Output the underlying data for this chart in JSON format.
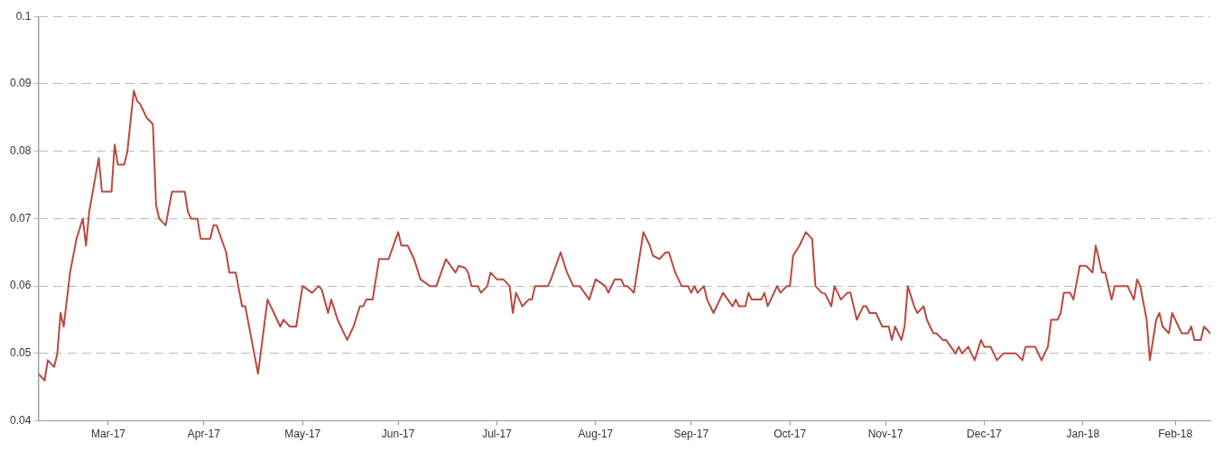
{
  "chart_data": {
    "type": "line",
    "x": [
      "2017-02-22",
      "2017-02-24",
      "2017-02-25",
      "2017-02-27",
      "2017-02-28",
      "2017-03-01",
      "2017-03-02",
      "2017-03-04",
      "2017-03-06",
      "2017-03-08",
      "2017-03-09",
      "2017-03-10",
      "2017-03-13",
      "2017-03-14",
      "2017-03-17",
      "2017-03-18",
      "2017-03-19",
      "2017-03-21",
      "2017-03-22",
      "2017-03-24",
      "2017-03-25",
      "2017-03-26",
      "2017-03-28",
      "2017-03-30",
      "2017-03-31",
      "2017-04-01",
      "2017-04-03",
      "2017-04-05",
      "2017-04-09",
      "2017-04-10",
      "2017-04-11",
      "2017-04-13",
      "2017-04-14",
      "2017-04-17",
      "2017-04-18",
      "2017-04-19",
      "2017-04-22",
      "2017-04-23",
      "2017-04-25",
      "2017-04-27",
      "2017-04-28",
      "2017-04-30",
      "2017-05-02",
      "2017-05-05",
      "2017-05-07",
      "2017-05-09",
      "2017-05-10",
      "2017-05-12",
      "2017-05-14",
      "2017-05-16",
      "2017-05-19",
      "2017-05-21",
      "2017-05-22",
      "2017-05-24",
      "2017-05-25",
      "2017-05-27",
      "2017-05-30",
      "2017-06-01",
      "2017-06-03",
      "2017-06-04",
      "2017-06-05",
      "2017-06-07",
      "2017-06-09",
      "2017-06-12",
      "2017-06-15",
      "2017-06-16",
      "2017-06-18",
      "2017-06-20",
      "2017-06-22",
      "2017-06-25",
      "2017-06-26",
      "2017-06-27",
      "2017-06-30",
      "2017-07-03",
      "2017-07-04",
      "2017-07-06",
      "2017-07-07",
      "2017-07-08",
      "2017-07-10",
      "2017-07-11",
      "2017-07-13",
      "2017-07-14",
      "2017-07-16",
      "2017-07-18",
      "2017-07-20",
      "2017-07-21",
      "2017-07-22",
      "2017-07-24",
      "2017-07-26",
      "2017-07-27",
      "2017-07-28",
      "2017-08-01",
      "2017-08-02",
      "2017-08-05",
      "2017-08-07",
      "2017-08-09",
      "2017-08-11",
      "2017-08-14",
      "2017-08-16",
      "2017-08-19",
      "2017-08-20",
      "2017-08-22",
      "2017-08-24",
      "2017-08-25",
      "2017-08-26",
      "2017-08-28",
      "2017-08-29",
      "2017-08-31",
      "2017-09-02",
      "2017-09-03",
      "2017-09-05",
      "2017-09-07",
      "2017-09-08",
      "2017-09-10",
      "2017-09-12",
      "2017-09-14",
      "2017-09-15",
      "2017-09-16",
      "2017-09-17",
      "2017-09-19",
      "2017-09-20",
      "2017-09-22",
      "2017-09-25",
      "2017-09-28",
      "2017-09-29",
      "2017-09-30",
      "2017-10-02",
      "2017-10-03",
      "2017-10-04",
      "2017-10-07",
      "2017-10-08",
      "2017-10-09",
      "2017-10-10",
      "2017-10-12",
      "2017-10-13",
      "2017-10-15",
      "2017-10-16",
      "2017-10-17",
      "2017-10-19",
      "2017-10-21",
      "2017-10-23",
      "2017-10-24",
      "2017-10-26",
      "2017-10-27",
      "2017-10-29",
      "2017-10-30",
      "2017-11-01",
      "2017-11-03",
      "2017-11-04",
      "2017-11-06",
      "2017-11-08",
      "2017-11-09",
      "2017-11-10",
      "2017-11-12",
      "2017-11-14",
      "2017-11-16",
      "2017-11-17",
      "2017-11-18",
      "2017-11-20",
      "2017-11-21",
      "2017-11-22",
      "2017-11-24",
      "2017-11-25",
      "2017-11-27",
      "2017-11-28",
      "2017-11-30",
      "2017-12-01",
      "2017-12-03",
      "2017-12-04",
      "2017-12-07",
      "2017-12-08",
      "2017-12-09",
      "2017-12-11",
      "2017-12-13",
      "2017-12-15",
      "2017-12-16",
      "2017-12-18",
      "2017-12-20",
      "2017-12-22",
      "2017-12-26",
      "2017-12-28",
      "2017-12-29",
      "2018-01-01",
      "2018-01-03",
      "2018-01-05",
      "2018-01-06",
      "2018-01-08",
      "2018-01-09",
      "2018-01-10",
      "2018-01-12",
      "2018-01-13",
      "2018-01-15",
      "2018-01-17",
      "2018-01-19",
      "2018-01-20",
      "2018-01-22",
      "2018-01-23",
      "2018-01-25",
      "2018-01-26",
      "2018-01-30",
      "2018-02-01",
      "2018-02-02",
      "2018-02-03",
      "2018-02-05",
      "2018-02-06",
      "2018-02-08",
      "2018-02-09",
      "2018-02-10",
      "2018-02-12",
      "2018-02-13",
      "2018-02-15",
      "2018-02-16",
      "2018-02-18",
      "2018-02-19",
      "2018-02-20",
      "2018-02-22",
      "2018-02-23",
      "2018-02-25"
    ],
    "series": [
      {
        "color": "#b94a3f",
        "values": [
          0.047,
          0.046,
          0.049,
          0.048,
          0.05,
          0.056,
          0.054,
          0.062,
          0.067,
          0.07,
          0.066,
          0.071,
          0.079,
          0.074,
          0.074,
          0.081,
          0.078,
          0.078,
          0.08,
          0.089,
          0.0875,
          0.087,
          0.085,
          0.084,
          0.072,
          0.07,
          0.069,
          0.074,
          0.074,
          0.071,
          0.07,
          0.07,
          0.067,
          0.067,
          0.069,
          0.069,
          0.065,
          0.062,
          0.062,
          0.057,
          0.057,
          0.052,
          0.047,
          0.058,
          0.056,
          0.054,
          0.055,
          0.054,
          0.054,
          0.06,
          0.059,
          0.06,
          0.0595,
          0.056,
          0.058,
          0.055,
          0.052,
          0.054,
          0.057,
          0.057,
          0.058,
          0.058,
          0.064,
          0.064,
          0.068,
          0.066,
          0.066,
          0.064,
          0.061,
          0.06,
          0.06,
          0.06,
          0.064,
          0.062,
          0.063,
          0.0627,
          0.062,
          0.06,
          0.06,
          0.059,
          0.06,
          0.062,
          0.061,
          0.061,
          0.06,
          0.056,
          0.059,
          0.057,
          0.058,
          0.058,
          0.06,
          0.06,
          0.061,
          0.065,
          0.062,
          0.06,
          0.06,
          0.058,
          0.061,
          0.06,
          0.059,
          0.061,
          0.061,
          0.06,
          0.06,
          0.059,
          0.062,
          0.068,
          0.066,
          0.0645,
          0.064,
          0.065,
          0.065,
          0.062,
          0.06,
          0.06,
          0.059,
          0.06,
          0.059,
          0.06,
          0.058,
          0.056,
          0.059,
          0.057,
          0.058,
          0.057,
          0.057,
          0.059,
          0.058,
          0.058,
          0.059,
          0.057,
          0.058,
          0.06,
          0.059,
          0.06,
          0.06,
          0.0645,
          0.066,
          0.068,
          0.067,
          0.06,
          0.059,
          0.0589,
          0.057,
          0.06,
          0.058,
          0.059,
          0.059,
          0.055,
          0.057,
          0.057,
          0.056,
          0.056,
          0.054,
          0.054,
          0.052,
          0.054,
          0.052,
          0.054,
          0.06,
          0.057,
          0.056,
          0.057,
          0.055,
          0.053,
          0.053,
          0.052,
          0.052,
          0.05,
          0.051,
          0.05,
          0.051,
          0.049,
          0.052,
          0.051,
          0.051,
          0.049,
          0.05,
          0.05,
          0.049,
          0.051,
          0.051,
          0.049,
          0.051,
          0.055,
          0.055,
          0.056,
          0.059,
          0.059,
          0.058,
          0.063,
          0.063,
          0.062,
          0.066,
          0.062,
          0.062,
          0.058,
          0.06,
          0.06,
          0.058,
          0.061,
          0.06,
          0.055,
          0.049,
          0.055,
          0.056,
          0.054,
          0.053,
          0.056,
          0.054,
          0.053,
          0.053,
          0.054,
          0.052,
          0.052,
          0.054,
          0.053
        ]
      }
    ],
    "xlim": [
      "2017-02-22",
      "2018-02-25"
    ],
    "xticks": [
      {
        "value": "2017-03-16",
        "label": "Mar-17"
      },
      {
        "value": "2017-04-15",
        "label": "Apr-17"
      },
      {
        "value": "2017-05-16",
        "label": "May-17"
      },
      {
        "value": "2017-06-15",
        "label": "Jun-17"
      },
      {
        "value": "2017-07-16",
        "label": "Jul-17"
      },
      {
        "value": "2017-08-16",
        "label": "Aug-17"
      },
      {
        "value": "2017-09-15",
        "label": "Sep-17"
      },
      {
        "value": "2017-10-16",
        "label": "Oct-17"
      },
      {
        "value": "2017-11-15",
        "label": "Nov-17"
      },
      {
        "value": "2017-12-16",
        "label": "Dec-17"
      },
      {
        "value": "2018-01-16",
        "label": "Jan-18"
      },
      {
        "value": "2018-02-14",
        "label": "Feb-18"
      }
    ],
    "ylim": [
      0.04,
      0.1
    ],
    "yticks": [
      0.04,
      0.05,
      0.06,
      0.07,
      0.08,
      0.09,
      0.1
    ],
    "grid": "y",
    "legend": false,
    "marker": "none",
    "line_style": "solid"
  }
}
